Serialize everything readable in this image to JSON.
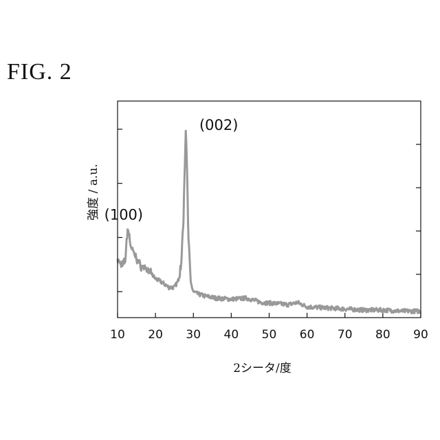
{
  "figure_label": "FIG. 2",
  "chart_data": {
    "type": "line",
    "xlabel": "2シータ/度",
    "ylabel": "強度 / a.u.",
    "xlim": [
      10,
      90
    ],
    "ylim": [
      0,
      1
    ],
    "x_ticks": [
      "10",
      "20",
      "30",
      "40",
      "50",
      "60",
      "70",
      "80",
      "90"
    ],
    "y_tick_labels_shown": false,
    "line_color": "#999999",
    "annotations": [
      {
        "text": "(100)",
        "x": 12.7,
        "y": 0.42
      },
      {
        "text": "(002)",
        "x": 28.0,
        "y": 0.88
      }
    ],
    "series": [
      {
        "x": [
          10,
          11,
          12,
          12.7,
          13.5,
          14.5,
          16,
          18,
          20,
          22,
          23.5,
          25,
          26,
          26.8,
          27.4,
          27.8,
          28.0,
          28.3,
          28.7,
          29.3,
          30,
          31,
          33,
          36,
          40,
          44,
          48,
          52,
          55,
          57.5,
          60,
          65,
          70,
          75,
          80,
          85,
          90
        ],
        "y": [
          0.27,
          0.24,
          0.26,
          0.42,
          0.33,
          0.29,
          0.24,
          0.22,
          0.18,
          0.16,
          0.14,
          0.14,
          0.17,
          0.25,
          0.46,
          0.74,
          0.88,
          0.72,
          0.38,
          0.16,
          0.12,
          0.11,
          0.1,
          0.09,
          0.085,
          0.09,
          0.07,
          0.065,
          0.06,
          0.07,
          0.05,
          0.045,
          0.04,
          0.035,
          0.035,
          0.03,
          0.03
        ]
      }
    ]
  }
}
